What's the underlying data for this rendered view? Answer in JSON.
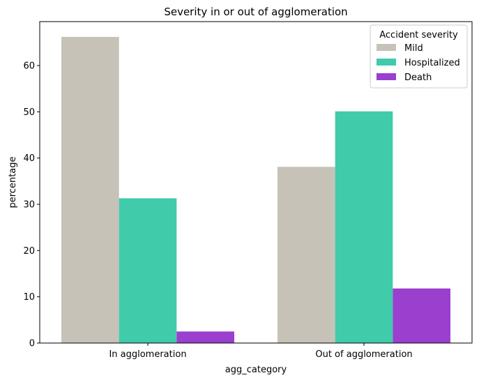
{
  "chart_data": {
    "type": "bar",
    "title": "Severity in or out of agglomeration",
    "xlabel": "agg_category",
    "ylabel": "percentage",
    "categories": [
      "In agglomeration",
      "Out of agglomeration"
    ],
    "series": [
      {
        "name": "Mild",
        "color": "#c6c2b8",
        "values": [
          66.2,
          38.1
        ]
      },
      {
        "name": "Hospitalized",
        "color": "#40cbaa",
        "values": [
          31.3,
          50.1
        ]
      },
      {
        "name": "Death",
        "color": "#9b3fcf",
        "values": [
          2.5,
          11.8
        ]
      }
    ],
    "ylim": [
      0,
      69.5
    ],
    "yticks": [
      0,
      10,
      20,
      30,
      40,
      50,
      60
    ],
    "legend": {
      "title": "Accident severity",
      "position": "top-right"
    },
    "grid": false
  }
}
